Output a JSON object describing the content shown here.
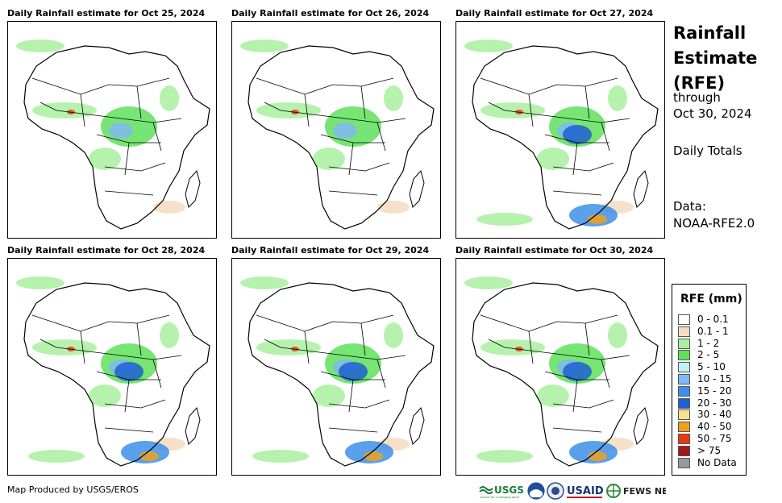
{
  "panels": [
    {
      "title": "Daily Rainfall estimate for Oct 25, 2024",
      "rain_level": "low"
    },
    {
      "title": "Daily Rainfall estimate for Oct 26, 2024",
      "rain_level": "low"
    },
    {
      "title": "Daily Rainfall estimate for Oct 27, 2024",
      "rain_level": "high"
    },
    {
      "title": "Daily Rainfall estimate for Oct 28, 2024",
      "rain_level": "high"
    },
    {
      "title": "Daily Rainfall estimate for Oct 29, 2024",
      "rain_level": "high"
    },
    {
      "title": "Daily Rainfall estimate for Oct 30, 2024",
      "rain_level": "high"
    }
  ],
  "sidebar": {
    "title_lines": [
      "Rainfall",
      "Estimate",
      "(RFE)"
    ],
    "through_label": "through",
    "through_date": "Oct 30, 2024",
    "totals_label": "Daily Totals",
    "data_label": "Data:",
    "data_source": "NOAA-RFE2.0"
  },
  "legend": {
    "title": "RFE (mm)",
    "items": [
      {
        "label": "0 - 0.1",
        "color": "#ffffff"
      },
      {
        "label": "0.1 - 1",
        "color": "#f3dcc0"
      },
      {
        "label": "1 - 2",
        "color": "#a9f0a0"
      },
      {
        "label": "2 - 5",
        "color": "#5fe05a"
      },
      {
        "label": "5 - 10",
        "color": "#bdf3f7"
      },
      {
        "label": "10 - 15",
        "color": "#7fb8f2"
      },
      {
        "label": "15 - 20",
        "color": "#3d8fe8"
      },
      {
        "label": "20 - 30",
        "color": "#1f5fd0"
      },
      {
        "label": "30 - 40",
        "color": "#f8e08a"
      },
      {
        "label": "40 - 50",
        "color": "#f0a020"
      },
      {
        "label": "50 - 75",
        "color": "#e83a10"
      },
      {
        "label": "> 75",
        "color": "#a31818"
      },
      {
        "label": "No Data",
        "color": "#999999"
      }
    ]
  },
  "credit": "Map Produced by USGS/EROS",
  "logos": {
    "usgs": "USGS",
    "usgs_tagline": "science for a changing world",
    "usaid": "USAID",
    "fewsnet": "FEWS NET"
  }
}
